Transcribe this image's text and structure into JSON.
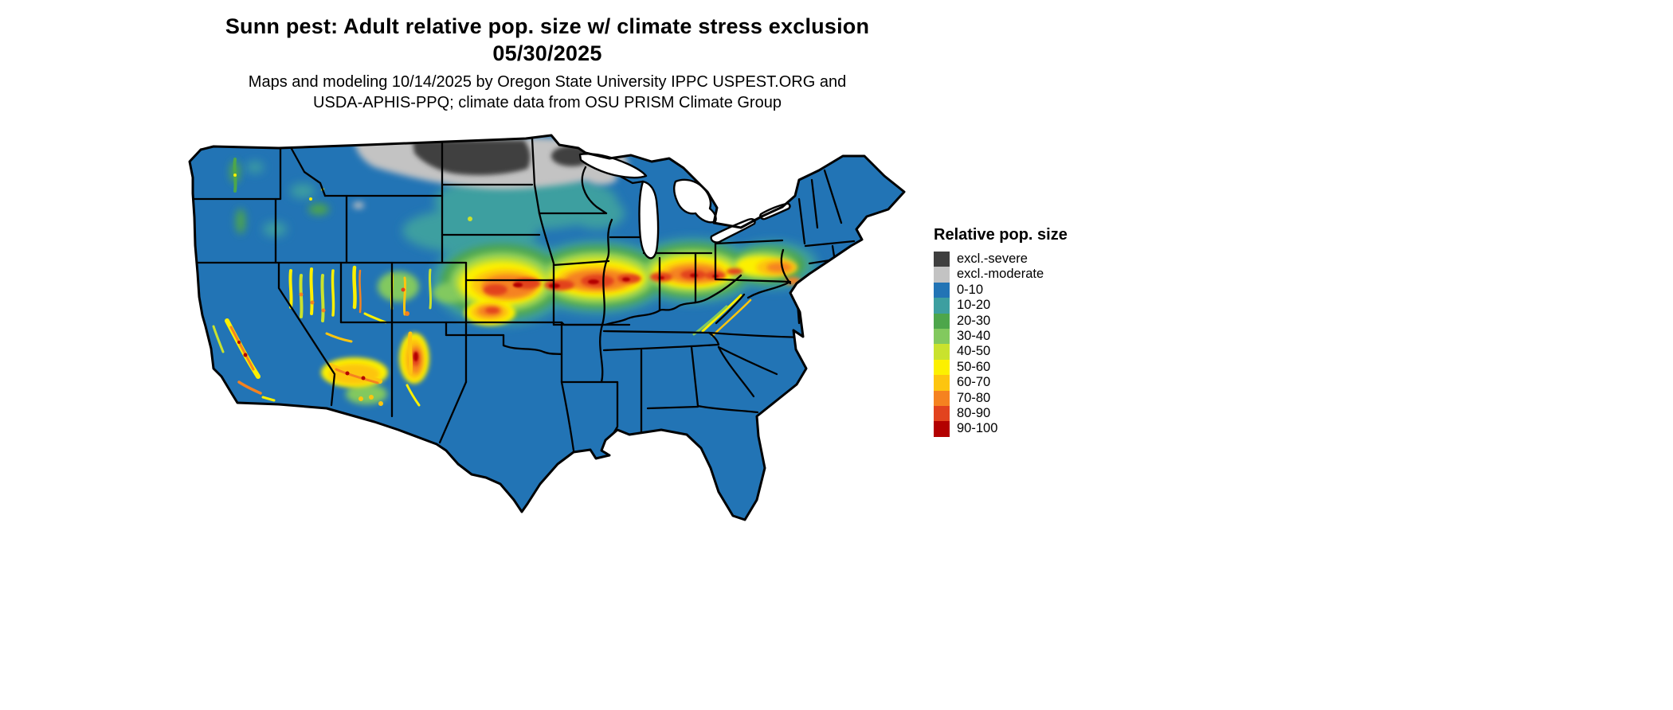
{
  "title": {
    "line1": "Sunn pest: Adult relative pop. size w/ climate stress exclusion",
    "line2": "05/30/2025"
  },
  "subtitle": {
    "line1": "Maps and modeling 10/14/2025 by Oregon State University IPPC USPEST.ORG and",
    "line2": "USDA-APHIS-PPQ; climate data from OSU PRISM Climate Group"
  },
  "legend": {
    "title": "Relative pop. size",
    "items": [
      {
        "label": "excl.-severe",
        "color": "#3F3F3F"
      },
      {
        "label": "excl.-moderate",
        "color": "#C3C3C3"
      },
      {
        "label": "0-10",
        "color": "#2274B5"
      },
      {
        "label": "10-20",
        "color": "#3D9FA0"
      },
      {
        "label": "20-30",
        "color": "#4DA64B"
      },
      {
        "label": "30-40",
        "color": "#82C95E"
      },
      {
        "label": "40-50",
        "color": "#C9E22E"
      },
      {
        "label": "50-60",
        "color": "#FCF000"
      },
      {
        "label": "60-70",
        "color": "#FDC50F"
      },
      {
        "label": "70-80",
        "color": "#F58220"
      },
      {
        "label": "80-90",
        "color": "#E2431E"
      },
      {
        "label": "90-100",
        "color": "#B30000"
      }
    ]
  }
}
